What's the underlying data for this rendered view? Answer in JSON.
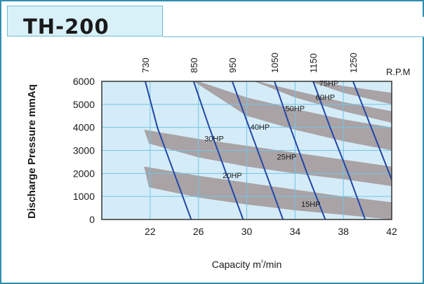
{
  "title": "TH-200",
  "colors": {
    "frame": "#2f8fae",
    "plot_background": "#d4ecf7",
    "grid": "#74c4e6",
    "band": "#a19798",
    "curve": "#2346a8",
    "title_box": "#d8f1f8"
  },
  "chart_data": {
    "type": "line",
    "xlabel": "Capacity  m³/min",
    "ylabel": "Discharge  Pressure  mmAq",
    "top_axis_label": "R.P.M",
    "xlim": [
      18,
      42
    ],
    "ylim": [
      0,
      6000
    ],
    "x_ticks": [
      22,
      26,
      30,
      34,
      38,
      42
    ],
    "y_ticks": [
      0,
      1000,
      2000,
      3000,
      4000,
      5000,
      6000
    ],
    "grid": true,
    "rpm_lines": [
      {
        "rpm": "730",
        "points": [
          [
            21.6,
            6000
          ],
          [
            22.6,
            4000
          ],
          [
            24.0,
            2000
          ],
          [
            25.4,
            0
          ]
        ]
      },
      {
        "rpm": "850",
        "points": [
          [
            25.6,
            6000
          ],
          [
            26.9,
            4000
          ],
          [
            28.3,
            2000
          ],
          [
            29.7,
            0
          ]
        ]
      },
      {
        "rpm": "950",
        "points": [
          [
            28.8,
            6000
          ],
          [
            30.2,
            4000
          ],
          [
            31.6,
            2000
          ],
          [
            33.0,
            0
          ]
        ]
      },
      {
        "rpm": "1050",
        "points": [
          [
            32.3,
            6000
          ],
          [
            33.6,
            4000
          ],
          [
            35.0,
            2000
          ],
          [
            36.5,
            0
          ]
        ]
      },
      {
        "rpm": "1150",
        "points": [
          [
            35.5,
            6000
          ],
          [
            36.9,
            4000
          ],
          [
            38.4,
            2000
          ],
          [
            39.8,
            0
          ]
        ]
      },
      {
        "rpm": "1250",
        "points": [
          [
            38.8,
            6000
          ],
          [
            40.3,
            4000
          ],
          [
            41.8,
            2000
          ],
          [
            43.3,
            0
          ]
        ]
      }
    ],
    "power_bands": [
      {
        "upper": [
          [
            21.5,
            2300
          ],
          [
            26,
            1900
          ],
          [
            30,
            1600
          ],
          [
            34,
            1300
          ],
          [
            38,
            1000
          ],
          [
            42,
            750
          ]
        ],
        "lower": [
          [
            21.9,
            1400
          ],
          [
            26,
            950
          ],
          [
            30,
            650
          ],
          [
            34,
            400
          ],
          [
            38,
            200
          ],
          [
            42,
            0
          ]
        ]
      },
      {
        "upper": [
          [
            21.5,
            3900
          ],
          [
            26,
            3500
          ],
          [
            30,
            3200
          ],
          [
            34,
            2900
          ],
          [
            38,
            2600
          ],
          [
            42,
            2300
          ]
        ],
        "lower": [
          [
            21.9,
            3300
          ],
          [
            26,
            2700
          ],
          [
            30,
            2300
          ],
          [
            34,
            2000
          ],
          [
            38,
            1750
          ],
          [
            42,
            1450
          ]
        ]
      },
      {
        "upper": [
          [
            26,
            6000
          ],
          [
            30,
            5300
          ],
          [
            34,
            4800
          ],
          [
            38,
            4350
          ],
          [
            42,
            4000
          ]
        ],
        "lower": [
          [
            25.6,
            6000
          ],
          [
            30,
            4500
          ],
          [
            34,
            3900
          ],
          [
            38,
            3400
          ],
          [
            42,
            3000
          ]
        ]
      },
      {
        "upper": [
          [
            30.9,
            6000
          ],
          [
            34,
            5600
          ],
          [
            38,
            5100
          ],
          [
            42,
            4700
          ]
        ],
        "lower": [
          [
            30.6,
            6000
          ],
          [
            34,
            5300
          ],
          [
            38,
            4700
          ],
          [
            42,
            4200
          ]
        ]
      },
      {
        "upper": [
          [
            36.0,
            6000
          ],
          [
            38,
            5800
          ],
          [
            42,
            5500
          ]
        ],
        "lower": [
          [
            35.2,
            6000
          ],
          [
            38,
            5500
          ],
          [
            42,
            5000
          ]
        ]
      }
    ],
    "annotations": [
      {
        "text": "15HP",
        "x": 34.5,
        "y": 550
      },
      {
        "text": "20HP",
        "x": 28.0,
        "y": 1800
      },
      {
        "text": "25HP",
        "x": 32.5,
        "y": 2600
      },
      {
        "text": "30HP",
        "x": 26.5,
        "y": 3400
      },
      {
        "text": "40HP",
        "x": 30.3,
        "y": 3900
      },
      {
        "text": "50HP",
        "x": 33.2,
        "y": 4700
      },
      {
        "text": "60HP",
        "x": 35.7,
        "y": 5200
      },
      {
        "text": "75HP",
        "x": 36.0,
        "y": 5800
      }
    ]
  }
}
